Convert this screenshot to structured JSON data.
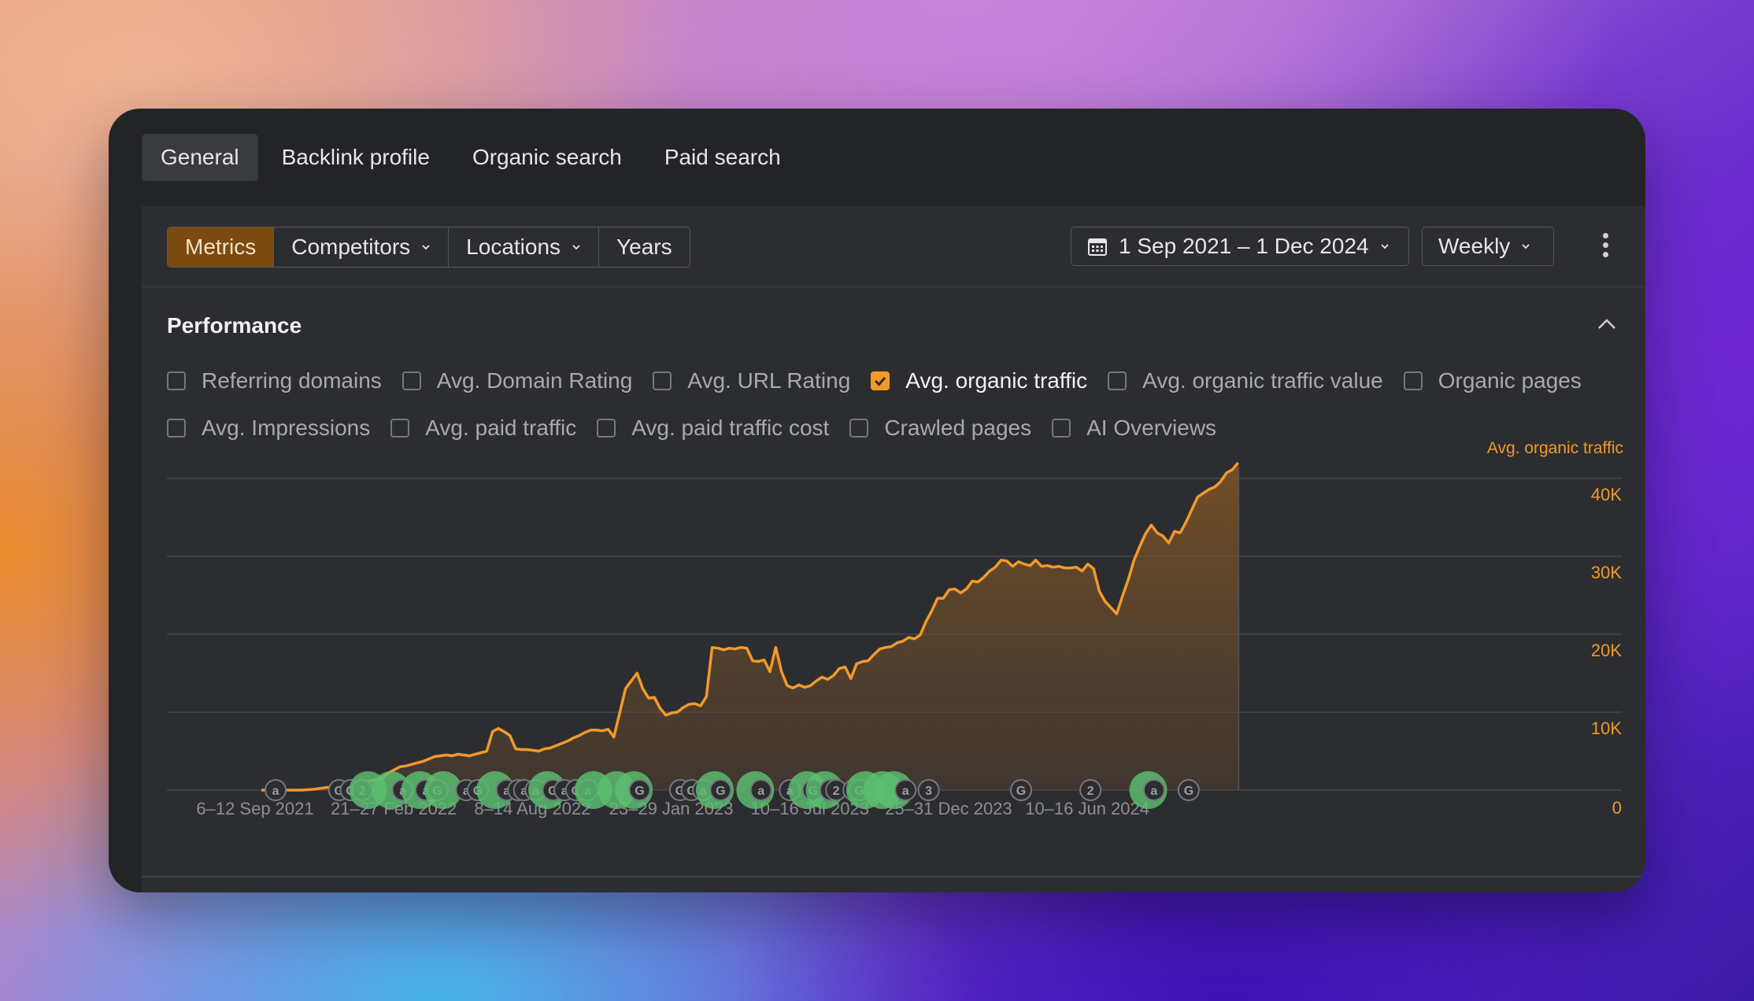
{
  "tabs": [
    "General",
    "Backlink profile",
    "Organic search",
    "Paid search"
  ],
  "toolbar": {
    "segments": [
      "Metrics",
      "Competitors",
      "Locations",
      "Years"
    ],
    "date_range": "1 Sep 2021 – 1 Dec 2024",
    "interval": "Weekly"
  },
  "section": {
    "title": "Performance"
  },
  "metrics_row1": [
    {
      "label": "Referring domains",
      "checked": false
    },
    {
      "label": "Avg. Domain Rating",
      "checked": false
    },
    {
      "label": "Avg. URL Rating",
      "checked": false
    },
    {
      "label": "Avg. organic traffic",
      "checked": true
    },
    {
      "label": "Avg. organic traffic value",
      "checked": false
    },
    {
      "label": "Organic pages",
      "checked": false
    }
  ],
  "metrics_row2": [
    {
      "label": "Avg. Impressions",
      "checked": false
    },
    {
      "label": "Avg. paid traffic",
      "checked": false
    },
    {
      "label": "Avg. paid traffic cost",
      "checked": false
    },
    {
      "label": "Crawled pages",
      "checked": false
    },
    {
      "label": "AI Overviews",
      "checked": false
    }
  ],
  "colors": {
    "accent": "#f19a2a",
    "event_green": "#5cbf72",
    "panel": "#2c2d30"
  },
  "chart_data": {
    "type": "area",
    "series_label": "Avg. organic traffic",
    "x_tick_labels": [
      "6–12 Sep 2021",
      "21–27 Feb 2022",
      "8–14 Aug 2022",
      "23–29 Jan 2023",
      "10–16 Jul 2023",
      "25–31 Dec 2023",
      "10–16 Jun 2024"
    ],
    "y_tick_labels": [
      "0",
      "10K",
      "20K",
      "30K",
      "40K"
    ],
    "ylim": [
      0,
      40000
    ],
    "week_count": 170,
    "grid": true,
    "series": [
      {
        "name": "Avg. organic traffic",
        "points": [
          [
            0,
            0
          ],
          [
            3,
            0
          ],
          [
            5,
            0
          ],
          [
            7,
            0
          ],
          [
            9,
            100
          ],
          [
            11,
            300
          ],
          [
            13,
            500
          ],
          [
            15,
            700
          ],
          [
            17,
            900
          ],
          [
            19,
            1200
          ],
          [
            21,
            1600
          ],
          [
            22,
            2200
          ],
          [
            23,
            2600
          ],
          [
            24,
            3000
          ],
          [
            25,
            3100
          ],
          [
            26,
            3300
          ],
          [
            27,
            3500
          ],
          [
            28,
            3700
          ],
          [
            29,
            4000
          ],
          [
            30,
            4300
          ],
          [
            31,
            4400
          ],
          [
            32,
            4500
          ],
          [
            33,
            4400
          ],
          [
            34,
            4600
          ],
          [
            35,
            4500
          ],
          [
            36,
            4400
          ],
          [
            37,
            4600
          ],
          [
            38,
            4800
          ],
          [
            39,
            5000
          ],
          [
            40,
            7500
          ],
          [
            41,
            7900
          ],
          [
            42,
            7500
          ],
          [
            43,
            7000
          ],
          [
            44,
            5300
          ],
          [
            45,
            5200
          ],
          [
            46,
            5200
          ],
          [
            47,
            5100
          ],
          [
            48,
            5000
          ],
          [
            49,
            5300
          ],
          [
            50,
            5400
          ],
          [
            51,
            5700
          ],
          [
            52,
            6000
          ],
          [
            53,
            6300
          ],
          [
            54,
            6700
          ],
          [
            55,
            7000
          ],
          [
            56,
            7400
          ],
          [
            57,
            7700
          ],
          [
            58,
            7700
          ],
          [
            59,
            7600
          ],
          [
            60,
            7800
          ],
          [
            61,
            6800
          ],
          [
            63,
            13000
          ],
          [
            64,
            14000
          ],
          [
            65,
            15000
          ],
          [
            66,
            13000
          ],
          [
            67,
            11800
          ],
          [
            68,
            11900
          ],
          [
            69,
            10500
          ],
          [
            70,
            9600
          ],
          [
            71,
            9900
          ],
          [
            72,
            10000
          ],
          [
            73,
            10600
          ],
          [
            74,
            11000
          ],
          [
            75,
            11100
          ],
          [
            76,
            10800
          ],
          [
            77,
            12000
          ],
          [
            78,
            18300
          ],
          [
            79,
            18200
          ],
          [
            80,
            18000
          ],
          [
            81,
            18200
          ],
          [
            82,
            18100
          ],
          [
            83,
            18300
          ],
          [
            84,
            18200
          ],
          [
            85,
            16600
          ],
          [
            86,
            16500
          ],
          [
            87,
            16700
          ],
          [
            88,
            15200
          ],
          [
            89,
            18300
          ],
          [
            90,
            15200
          ],
          [
            91,
            13400
          ],
          [
            92,
            13100
          ],
          [
            93,
            13500
          ],
          [
            94,
            13200
          ],
          [
            95,
            13400
          ],
          [
            96,
            14000
          ],
          [
            97,
            14500
          ],
          [
            98,
            14200
          ],
          [
            99,
            14700
          ],
          [
            100,
            15600
          ],
          [
            101,
            15800
          ],
          [
            102,
            14300
          ],
          [
            103,
            16200
          ],
          [
            104,
            16500
          ],
          [
            105,
            16600
          ],
          [
            106,
            17400
          ],
          [
            107,
            18100
          ],
          [
            108,
            18300
          ],
          [
            109,
            18400
          ],
          [
            110,
            18900
          ],
          [
            111,
            19100
          ],
          [
            112,
            19600
          ],
          [
            113,
            19400
          ],
          [
            114,
            19900
          ],
          [
            115,
            21600
          ],
          [
            116,
            23000
          ],
          [
            117,
            24600
          ],
          [
            118,
            24600
          ],
          [
            119,
            25700
          ],
          [
            120,
            25800
          ],
          [
            121,
            25300
          ],
          [
            122,
            25800
          ],
          [
            123,
            26800
          ],
          [
            124,
            26700
          ],
          [
            125,
            27300
          ],
          [
            126,
            28100
          ],
          [
            127,
            28600
          ],
          [
            128,
            29500
          ],
          [
            129,
            29400
          ],
          [
            130,
            28700
          ],
          [
            131,
            29300
          ],
          [
            132,
            29000
          ],
          [
            133,
            28800
          ],
          [
            134,
            29500
          ],
          [
            135,
            28700
          ],
          [
            136,
            28800
          ],
          [
            137,
            28600
          ],
          [
            138,
            28700
          ],
          [
            139,
            28500
          ],
          [
            140,
            28500
          ],
          [
            141,
            28600
          ],
          [
            142,
            28100
          ],
          [
            143,
            29000
          ],
          [
            144,
            28400
          ],
          [
            145,
            25500
          ],
          [
            146,
            24200
          ],
          [
            147,
            23400
          ],
          [
            148,
            22600
          ],
          [
            149,
            24900
          ],
          [
            150,
            27000
          ],
          [
            151,
            29500
          ],
          [
            152,
            31300
          ],
          [
            153,
            32900
          ],
          [
            154,
            34000
          ],
          [
            155,
            33000
          ],
          [
            156,
            32600
          ],
          [
            157,
            31700
          ],
          [
            158,
            33200
          ],
          [
            159,
            33000
          ],
          [
            160,
            34400
          ],
          [
            161,
            36000
          ],
          [
            162,
            37600
          ],
          [
            163,
            38100
          ],
          [
            164,
            38600
          ],
          [
            165,
            38900
          ],
          [
            166,
            39600
          ],
          [
            167,
            40700
          ],
          [
            168,
            41100
          ],
          [
            169,
            42000
          ]
        ]
      }
    ],
    "annotations": [
      {
        "week": 3,
        "kind": "a"
      },
      {
        "week": 14,
        "kind": "g"
      },
      {
        "week": 16,
        "kind": "g"
      },
      {
        "week": 18,
        "kind": "2"
      },
      {
        "week": 19,
        "kind": "green"
      },
      {
        "week": 23,
        "kind": "green"
      },
      {
        "week": 25,
        "kind": "a"
      },
      {
        "week": 28,
        "kind": "green"
      },
      {
        "week": 29,
        "kind": "a"
      },
      {
        "week": 31,
        "kind": "g"
      },
      {
        "week": 32,
        "kind": "green"
      },
      {
        "week": 36,
        "kind": "a"
      },
      {
        "week": 38,
        "kind": "g"
      },
      {
        "week": 41,
        "kind": "green"
      },
      {
        "week": 43,
        "kind": "a"
      },
      {
        "week": 45,
        "kind": "a"
      },
      {
        "week": 46,
        "kind": "a"
      },
      {
        "week": 48,
        "kind": "a"
      },
      {
        "week": 50,
        "kind": "green"
      },
      {
        "week": 51,
        "kind": "g"
      },
      {
        "week": 53,
        "kind": "a"
      },
      {
        "week": 55,
        "kind": "g"
      },
      {
        "week": 57,
        "kind": "a"
      },
      {
        "week": 58,
        "kind": "green"
      },
      {
        "week": 62,
        "kind": "green"
      },
      {
        "week": 65,
        "kind": "green"
      },
      {
        "week": 66,
        "kind": "g"
      },
      {
        "week": 73,
        "kind": "g"
      },
      {
        "week": 75,
        "kind": "g"
      },
      {
        "week": 77,
        "kind": "a"
      },
      {
        "week": 79,
        "kind": "green"
      },
      {
        "week": 80,
        "kind": "g"
      },
      {
        "week": 86,
        "kind": "green"
      },
      {
        "week": 87,
        "kind": "a"
      },
      {
        "week": 92,
        "kind": "a"
      },
      {
        "week": 95,
        "kind": "green"
      },
      {
        "week": 96,
        "kind": "g"
      },
      {
        "week": 98,
        "kind": "green"
      },
      {
        "week": 99,
        "kind": "g"
      },
      {
        "week": 100,
        "kind": "2"
      },
      {
        "week": 103,
        "kind": "g"
      },
      {
        "week": 104,
        "kind": "g"
      },
      {
        "week": 105,
        "kind": "green"
      },
      {
        "week": 108,
        "kind": "green"
      },
      {
        "week": 110,
        "kind": "green"
      },
      {
        "week": 112,
        "kind": "a"
      },
      {
        "week": 116,
        "kind": "3"
      },
      {
        "week": 132,
        "kind": "g"
      },
      {
        "week": 144,
        "kind": "2"
      },
      {
        "week": 154,
        "kind": "green"
      },
      {
        "week": 155,
        "kind": "a"
      },
      {
        "week": 161,
        "kind": "g"
      }
    ]
  }
}
